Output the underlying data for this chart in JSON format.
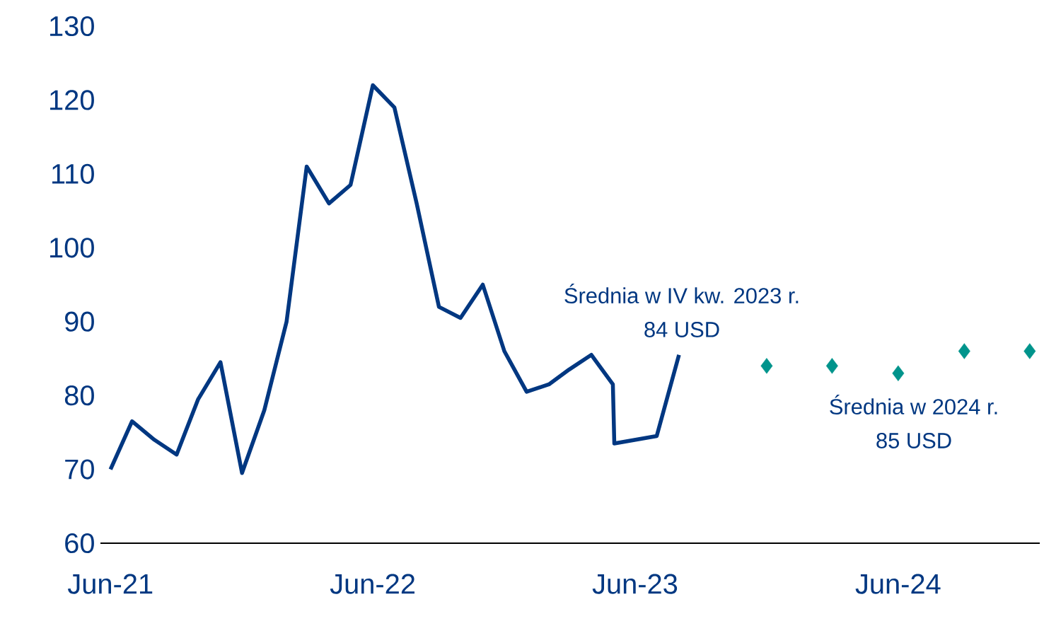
{
  "chart_data": {
    "type": "line",
    "series": [
      {
        "color": "#003781",
        "marker": "none",
        "line_style": "solid",
        "x": [
          "2021-06-01",
          "2021-07-01",
          "2021-08-01",
          "2021-09-01",
          "2021-10-01",
          "2021-11-01",
          "2021-12-01",
          "2022-01-01",
          "2022-02-01",
          "2022-03-01",
          "2022-04-01",
          "2022-05-01",
          "2022-06-01",
          "2022-07-01",
          "2022-08-01",
          "2022-09-01",
          "2022-10-01",
          "2022-11-01",
          "2022-12-01",
          "2023-01-01",
          "2023-02-01",
          "2023-03-01",
          "2023-04-01",
          "2023-05-01",
          "2023-05-03",
          "2023-07-01",
          "2023-08-01"
        ],
        "values": [
          70,
          76.5,
          74,
          72,
          79.5,
          84.5,
          69.5,
          78,
          90,
          111,
          106,
          108.5,
          122,
          119,
          106,
          92,
          90.5,
          95,
          86,
          80.5,
          81.5,
          83.5,
          85.5,
          81.5,
          73.5,
          74.5,
          85.5
        ]
      },
      {
        "type": "scatter",
        "color": "#00948c",
        "marker": "diamond",
        "x": [
          "2023-12-01",
          "2024-03-01",
          "2024-06-01",
          "2024-09-01",
          "2024-12-01"
        ],
        "values": [
          84,
          84,
          83,
          86,
          86
        ]
      }
    ],
    "xlim": [
      "2021-05-18",
      "2024-12-15"
    ],
    "xticks": [
      {
        "value": "2021-06-01",
        "label": "Jun-21"
      },
      {
        "value": "2022-06-01",
        "label": "Jun-22"
      },
      {
        "value": "2023-06-01",
        "label": "Jun-23"
      },
      {
        "value": "2024-06-01",
        "label": "Jun-24"
      }
    ],
    "ylim": [
      60,
      130
    ],
    "yticks": [
      60,
      70,
      80,
      90,
      100,
      110,
      120,
      130
    ],
    "annotations": [
      "Średnia w IV kw. 2023 r.",
      "84 USD",
      "Średnia w 2024 r.",
      "85 USD"
    ],
    "grid": false
  }
}
